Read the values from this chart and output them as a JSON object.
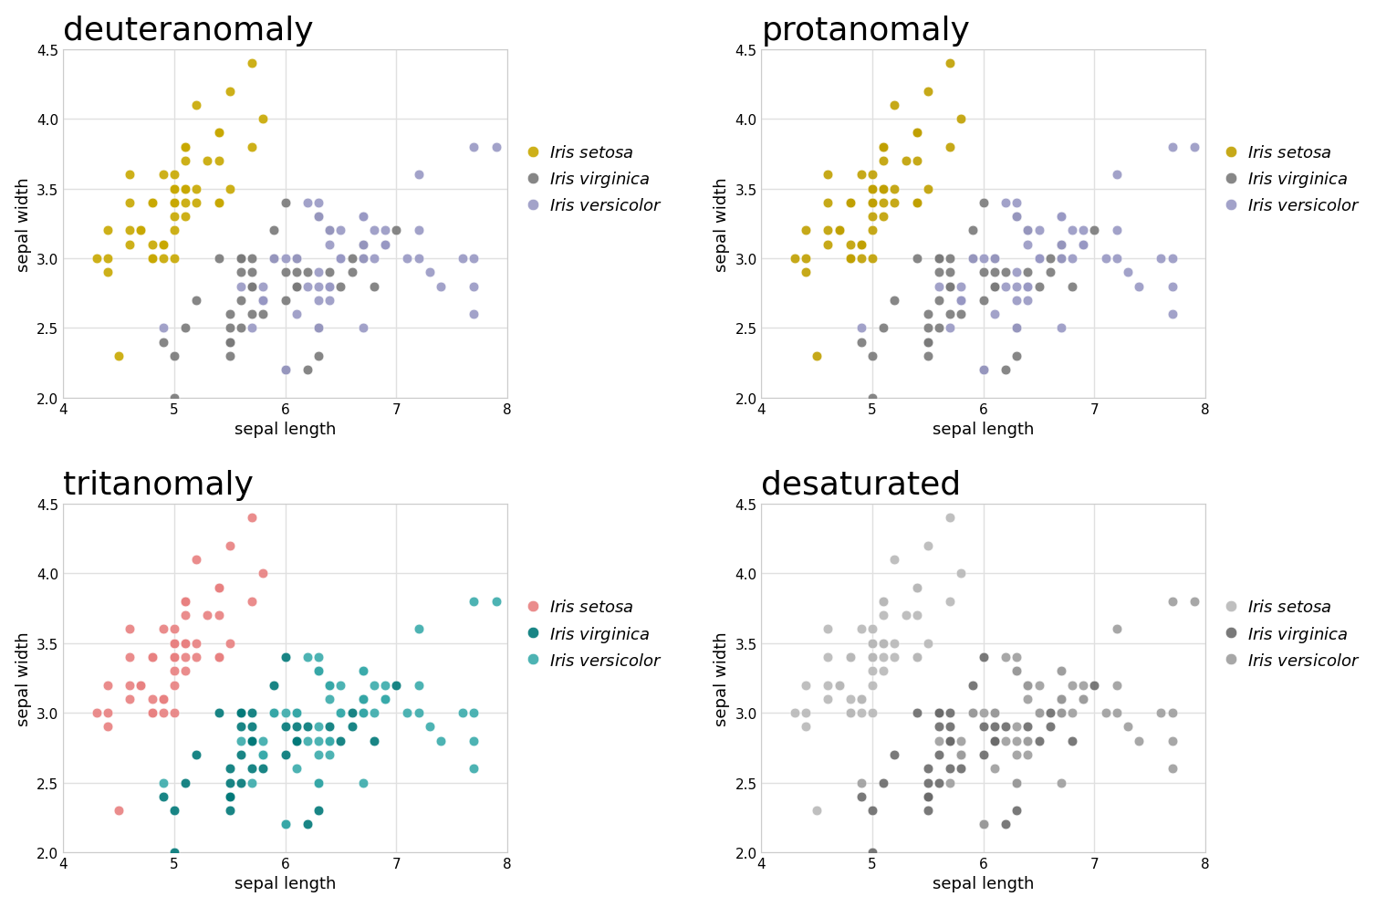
{
  "titles": [
    "deuteranomaly",
    "protanomaly",
    "tritanomaly",
    "desaturated"
  ],
  "xlabel": "sepal length",
  "ylabel": "sepal width",
  "xlim": [
    4.0,
    8.0
  ],
  "ylim": [
    2.0,
    4.5
  ],
  "xticks": [
    4.0,
    5.0,
    6.0,
    7.0,
    8.0
  ],
  "yticks": [
    2.0,
    2.5,
    3.0,
    3.5,
    4.0,
    4.5
  ],
  "legend_labels": [
    "Iris setosa",
    "Iris virginica",
    "Iris versicolor"
  ],
  "panels": {
    "deuteranomaly": {
      "setosa": "#C8A800",
      "virginica": "#797979",
      "versicolor": "#9898C4"
    },
    "protanomaly": {
      "setosa": "#C0A000",
      "virginica": "#7A7A7A",
      "versicolor": "#9898C4"
    },
    "tritanomaly": {
      "setosa": "#E88080",
      "virginica": "#007878",
      "versicolor": "#3AABAB"
    },
    "desaturated": {
      "setosa": "#B8B8B8",
      "virginica": "#6A6A6A",
      "versicolor": "#9E9E9E"
    }
  },
  "iris_sepal_length": [
    5.1,
    4.9,
    4.7,
    4.6,
    5.0,
    5.4,
    4.6,
    5.0,
    4.4,
    4.9,
    5.4,
    4.8,
    4.8,
    4.3,
    5.8,
    5.7,
    5.4,
    5.1,
    5.7,
    5.1,
    5.4,
    5.1,
    4.6,
    5.1,
    4.8,
    5.0,
    5.0,
    5.2,
    5.2,
    4.7,
    4.8,
    5.4,
    5.2,
    5.5,
    4.9,
    5.0,
    5.5,
    4.9,
    4.4,
    5.1,
    5.0,
    4.5,
    4.4,
    5.0,
    5.1,
    4.8,
    5.1,
    4.6,
    5.3,
    5.0,
    7.0,
    6.4,
    6.9,
    5.5,
    6.5,
    5.7,
    6.3,
    4.9,
    6.6,
    5.2,
    5.0,
    5.9,
    6.0,
    6.1,
    5.6,
    6.7,
    5.6,
    5.8,
    6.2,
    5.6,
    5.9,
    6.1,
    6.3,
    6.1,
    6.4,
    6.6,
    6.8,
    6.7,
    6.0,
    5.7,
    5.5,
    5.5,
    5.8,
    6.0,
    5.4,
    6.0,
    6.7,
    6.3,
    5.6,
    5.5,
    5.5,
    6.1,
    5.8,
    5.0,
    5.6,
    5.7,
    5.7,
    6.2,
    5.1,
    5.7,
    6.3,
    5.8,
    7.1,
    6.3,
    6.5,
    7.6,
    4.9,
    7.3,
    6.7,
    7.2,
    6.5,
    6.4,
    6.8,
    5.7,
    5.8,
    6.4,
    6.5,
    7.7,
    7.7,
    6.0,
    6.9,
    5.6,
    7.7,
    6.3,
    6.7,
    7.2,
    6.2,
    6.1,
    6.4,
    7.2,
    7.4,
    7.9,
    6.4,
    6.3,
    6.1,
    7.7,
    6.3,
    6.4,
    6.0,
    6.9,
    6.7,
    6.9,
    5.8,
    6.8,
    6.7,
    6.7,
    6.3,
    6.5,
    6.2,
    5.9
  ],
  "iris_sepal_width": [
    3.5,
    3.0,
    3.2,
    3.1,
    3.6,
    3.9,
    3.4,
    3.4,
    2.9,
    3.1,
    3.7,
    3.4,
    3.0,
    3.0,
    4.0,
    4.4,
    3.9,
    3.5,
    3.8,
    3.8,
    3.4,
    3.7,
    3.6,
    3.3,
    3.4,
    3.0,
    3.4,
    3.5,
    3.4,
    3.2,
    3.1,
    3.4,
    4.1,
    4.2,
    3.1,
    3.2,
    3.5,
    3.6,
    3.0,
    3.4,
    3.5,
    2.3,
    3.2,
    3.5,
    3.8,
    3.0,
    3.8,
    3.2,
    3.7,
    3.3,
    3.2,
    3.2,
    3.1,
    2.3,
    2.8,
    2.8,
    3.3,
    2.4,
    2.9,
    2.7,
    2.0,
    3.0,
    2.2,
    2.9,
    2.9,
    3.1,
    3.0,
    2.7,
    2.2,
    2.5,
    3.2,
    2.8,
    2.5,
    2.8,
    2.9,
    3.0,
    2.8,
    3.0,
    2.9,
    2.6,
    2.4,
    2.4,
    2.7,
    2.7,
    3.0,
    3.4,
    3.1,
    2.3,
    3.0,
    2.5,
    2.6,
    3.0,
    2.6,
    2.3,
    2.7,
    3.0,
    2.9,
    2.9,
    2.5,
    2.8,
    3.3,
    2.7,
    3.0,
    2.9,
    3.0,
    3.0,
    2.5,
    2.9,
    2.5,
    3.6,
    3.2,
    2.7,
    3.0,
    2.5,
    2.8,
    3.2,
    3.0,
    3.8,
    2.6,
    2.2,
    3.2,
    2.8,
    2.8,
    2.7,
    3.3,
    3.2,
    2.8,
    3.0,
    2.8,
    3.0,
    2.8,
    3.8,
    2.8,
    2.8,
    2.6,
    3.0,
    3.4,
    3.1,
    3.0,
    3.1,
    3.1,
    3.1,
    2.7,
    3.2,
    3.3,
    3.0,
    2.5,
    3.0,
    3.4,
    3.0
  ],
  "iris_species": [
    0,
    0,
    0,
    0,
    0,
    0,
    0,
    0,
    0,
    0,
    0,
    0,
    0,
    0,
    0,
    0,
    0,
    0,
    0,
    0,
    0,
    0,
    0,
    0,
    0,
    0,
    0,
    0,
    0,
    0,
    0,
    0,
    0,
    0,
    0,
    0,
    0,
    0,
    0,
    0,
    0,
    0,
    0,
    0,
    0,
    0,
    0,
    0,
    0,
    0,
    1,
    1,
    1,
    1,
    1,
    1,
    1,
    1,
    1,
    1,
    1,
    1,
    1,
    1,
    1,
    1,
    1,
    1,
    1,
    1,
    1,
    1,
    1,
    1,
    1,
    1,
    1,
    1,
    1,
    1,
    1,
    1,
    1,
    1,
    1,
    1,
    1,
    1,
    1,
    1,
    1,
    1,
    1,
    1,
    1,
    1,
    1,
    1,
    1,
    1,
    2,
    2,
    2,
    2,
    2,
    2,
    2,
    2,
    2,
    2,
    2,
    2,
    2,
    2,
    2,
    2,
    2,
    2,
    2,
    2,
    2,
    2,
    2,
    2,
    2,
    2,
    2,
    2,
    2,
    2,
    2,
    2,
    2,
    2,
    2,
    2,
    2,
    2,
    2,
    2,
    2,
    2,
    2,
    2,
    2,
    2,
    2,
    2,
    2,
    2
  ],
  "background_color": "#ffffff",
  "grid_color": "#e0e0e0",
  "title_fontsize": 26,
  "axis_label_fontsize": 13,
  "tick_fontsize": 11,
  "legend_fontsize": 13,
  "marker_size": 60,
  "marker_alpha": 0.9,
  "edge_color": "white",
  "edge_width": 0.5
}
